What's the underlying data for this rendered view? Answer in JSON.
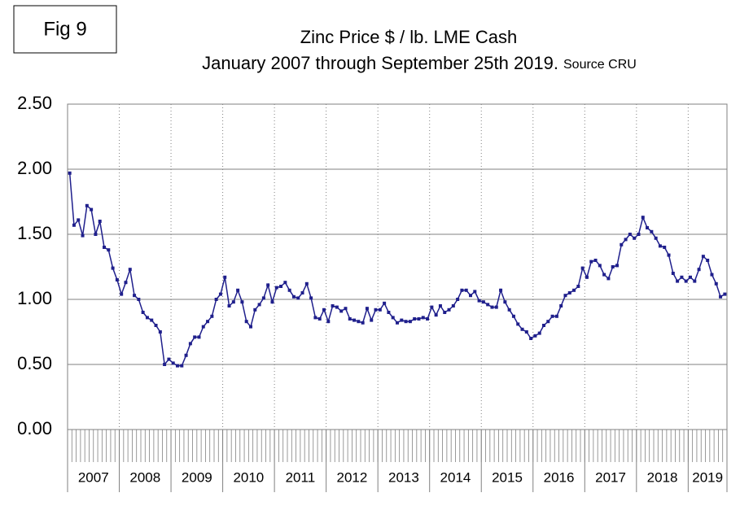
{
  "chart_data": {
    "type": "line",
    "figure_label": "Fig 9",
    "title": "Zinc Price $ / lb. LME Cash",
    "subtitle": "January 2007 through September 25th 2019.",
    "source": "Source CRU",
    "groups": [
      "2007",
      "2008",
      "2009",
      "2010",
      "2011",
      "2012",
      "2013",
      "2014",
      "2015",
      "2016",
      "2017",
      "2018",
      "2019"
    ],
    "categories": [
      null,
      null,
      null,
      null,
      null,
      null,
      null,
      null,
      null,
      null,
      null,
      null,
      null,
      null,
      null,
      null,
      null,
      null,
      null,
      null,
      null,
      null,
      null,
      null,
      null,
      null,
      null,
      null,
      null,
      null,
      null,
      null,
      null,
      null,
      null,
      null,
      null,
      null,
      null,
      null,
      null,
      null,
      null,
      null,
      null,
      null,
      null,
      null,
      null,
      null,
      null,
      null,
      null,
      null,
      null,
      null,
      null,
      null,
      null,
      null,
      null,
      null,
      null,
      null,
      null,
      null,
      null,
      null,
      null,
      null,
      null,
      null,
      null,
      null,
      null,
      null,
      null,
      null,
      null,
      null,
      null,
      null,
      null,
      null,
      null,
      null,
      null,
      null,
      null,
      null,
      null,
      null,
      null,
      null,
      null,
      null,
      null,
      null,
      null,
      null,
      null,
      null,
      null,
      null,
      null,
      null,
      null,
      null,
      null,
      null,
      null,
      null,
      null,
      null,
      null,
      null,
      null,
      null,
      null,
      null,
      null,
      null,
      null,
      null,
      null,
      null,
      null,
      null,
      null,
      null,
      null,
      null,
      null,
      null,
      null,
      null,
      null,
      null,
      null,
      null,
      null,
      null,
      null,
      null,
      null,
      null,
      null,
      null,
      null,
      null,
      null,
      null,
      null
    ],
    "series": [
      {
        "name": "Zinc Price",
        "color": "#1f1f8c",
        "values": [
          1.97,
          1.57,
          1.61,
          1.49,
          1.72,
          1.69,
          1.5,
          1.6,
          1.4,
          1.38,
          1.24,
          1.15,
          1.04,
          1.13,
          1.23,
          1.03,
          1.0,
          0.9,
          0.86,
          0.84,
          0.8,
          0.75,
          0.5,
          0.54,
          0.51,
          0.49,
          0.49,
          0.57,
          0.66,
          0.71,
          0.71,
          0.79,
          0.83,
          0.87,
          1.0,
          1.04,
          1.17,
          0.95,
          0.98,
          1.07,
          0.98,
          0.83,
          0.79,
          0.92,
          0.96,
          1.01,
          1.11,
          0.98,
          1.09,
          1.1,
          1.13,
          1.07,
          1.02,
          1.01,
          1.05,
          1.12,
          1.01,
          0.86,
          0.85,
          0.92,
          0.83,
          0.95,
          0.94,
          0.91,
          0.93,
          0.85,
          0.84,
          0.83,
          0.82,
          0.93,
          0.84,
          0.92,
          0.92,
          0.97,
          0.9,
          0.86,
          0.82,
          0.84,
          0.83,
          0.83,
          0.85,
          0.85,
          0.86,
          0.85,
          0.94,
          0.88,
          0.95,
          0.9,
          0.92,
          0.95,
          1.0,
          1.07,
          1.07,
          1.03,
          1.06,
          0.99,
          0.98,
          0.96,
          0.94,
          0.94,
          1.07,
          0.98,
          0.92,
          0.87,
          0.81,
          0.77,
          0.75,
          0.7,
          0.72,
          0.74,
          0.8,
          0.83,
          0.87,
          0.87,
          0.95,
          1.03,
          1.05,
          1.07,
          1.1,
          1.24,
          1.17,
          1.29,
          1.3,
          1.26,
          1.19,
          1.16,
          1.25,
          1.26,
          1.42,
          1.46,
          1.5,
          1.47,
          1.5,
          1.63,
          1.55,
          1.52,
          1.47,
          1.41,
          1.4,
          1.34,
          1.2,
          1.14,
          1.17,
          1.14,
          1.17,
          1.14,
          1.23,
          1.33,
          1.3,
          1.19,
          1.12,
          1.02,
          1.04
        ]
      }
    ],
    "ylim": [
      0,
      2.5
    ],
    "yticks": [
      {
        "value": 0,
        "label": "0.00"
      },
      {
        "value": 0.5,
        "label": "0.50"
      },
      {
        "value": 1,
        "label": "1.00"
      },
      {
        "value": 1.5,
        "label": "1.50"
      },
      {
        "value": 2,
        "label": "2.00"
      },
      {
        "value": 2.5,
        "label": "2.50"
      }
    ],
    "grid": true
  }
}
